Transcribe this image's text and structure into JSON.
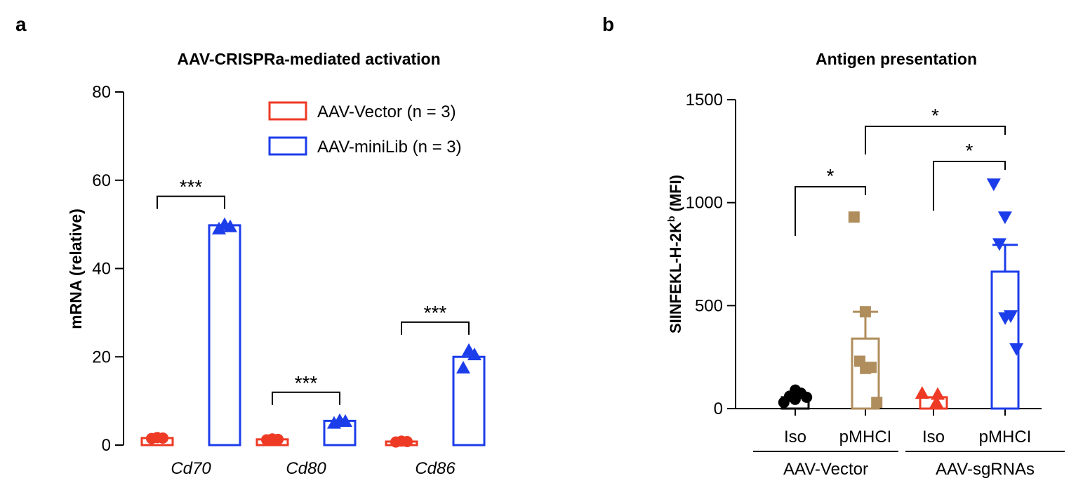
{
  "chart_data": [
    {
      "panel_label": "a",
      "type": "bar",
      "title": "AAV-CRISPRa-mediated activation",
      "ylabel": "mRNA (relative)",
      "xlabel": "",
      "ylim": [
        0,
        80
      ],
      "yticks": [
        0,
        20,
        40,
        60,
        80
      ],
      "categories": [
        "Cd70",
        "Cd80",
        "Cd86"
      ],
      "legend_position": "top-right",
      "series": [
        {
          "name": "AAV-Vector (n = 3)",
          "color": "#ee3a24",
          "marker": "circle",
          "values": [
            1.6,
            1.3,
            0.8
          ],
          "points": [
            [
              1.5,
              1.7,
              1.6
            ],
            [
              1.2,
              1.4,
              1.3
            ],
            [
              0.7,
              0.9,
              0.8
            ]
          ]
        },
        {
          "name": "AAV-miniLib (n = 3)",
          "color": "#1c3dea",
          "marker": "triangle",
          "values": [
            49.8,
            5.5,
            20.0
          ],
          "points": [
            [
              49.0,
              50.0,
              49.5
            ],
            [
              5.0,
              5.6,
              5.4
            ],
            [
              17.5,
              21.5,
              20.5
            ]
          ]
        }
      ],
      "significance": [
        "***",
        "***",
        "***"
      ]
    },
    {
      "panel_label": "b",
      "type": "bar",
      "title": "Antigen presentation",
      "ylabel": "SIINFEKL-H-2K",
      "ylabel_superscript": "b",
      "ylabel_suffix": " (MFI)",
      "ylim": [
        0,
        1500
      ],
      "yticks": [
        0,
        500,
        1000,
        1500
      ],
      "categories": [
        "Iso",
        "pMHCI",
        "Iso",
        "pMHCI"
      ],
      "groups": [
        "AAV-Vector",
        "AAV-sgRNAs"
      ],
      "bars": [
        {
          "value": 55,
          "color": "#000000",
          "marker": "circle",
          "sem": null,
          "points": [
            30,
            45,
            60,
            75,
            90,
            55
          ]
        },
        {
          "value": 340,
          "color": "#b08d5c",
          "marker": "square",
          "sem": 130,
          "points": [
            930,
            470,
            230,
            200,
            195,
            30
          ]
        },
        {
          "value": 55,
          "color": "#ee3a24",
          "marker": "triangle",
          "sem": null,
          "points": [
            75,
            70,
            30
          ]
        },
        {
          "value": 665,
          "color": "#1c3dea",
          "marker": "triangle-down",
          "sem": 130,
          "points": [
            1090,
            930,
            800,
            450,
            440,
            290
          ]
        }
      ],
      "significance": [
        {
          "from": 0,
          "to": 1,
          "label": "*"
        },
        {
          "from": 2,
          "to": 3,
          "label": "*"
        },
        {
          "from": 1,
          "to": 3,
          "label": "*"
        }
      ]
    }
  ]
}
